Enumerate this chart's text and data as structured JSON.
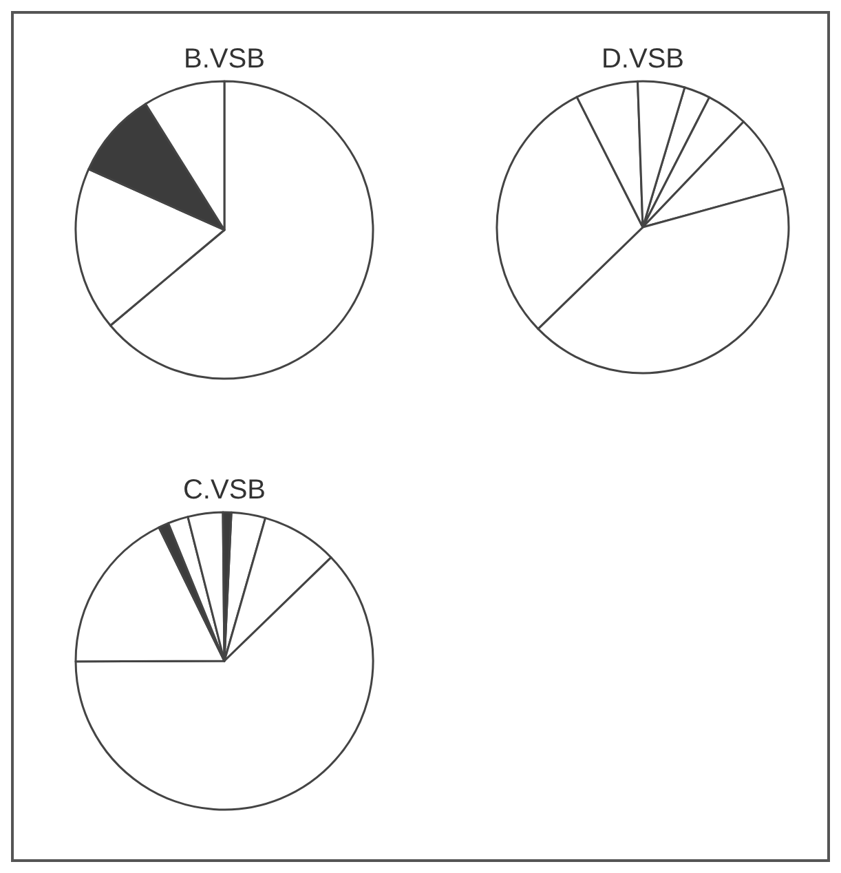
{
  "chart_data": [
    {
      "type": "pie",
      "title": "B.VSB",
      "categories": [
        null,
        null,
        null,
        null
      ],
      "values": [
        63.9,
        17.8,
        9.4,
        8.9
      ],
      "colors": [
        "#ffffff",
        "#ffffff",
        "#3c3c3c",
        "#ffffff"
      ]
    },
    {
      "type": "pie",
      "title": "D.VSB",
      "categories": [
        null,
        null,
        null,
        null,
        null,
        null,
        null
      ],
      "values": [
        2.9,
        4.6,
        8.6,
        42.0,
        29.8,
        6.9,
        5.2
      ],
      "colors": [
        "#ffffff",
        "#ffffff",
        "#ffffff",
        "#ffffff",
        "#ffffff",
        "#ffffff",
        "#ffffff"
      ]
    },
    {
      "type": "pie",
      "title": "C.VSB",
      "categories": [
        null,
        null,
        null,
        null,
        null,
        null,
        null,
        null
      ],
      "values": [
        3.7,
        8.3,
        62.2,
        17.8,
        1.1,
        2.2,
        3.8,
        0.9
      ],
      "colors": [
        "#ffffff",
        "#ffffff",
        "#ffffff",
        "#ffffff",
        "#3c3c3c",
        "#ffffff",
        "#ffffff",
        "#3c3c3c"
      ]
    }
  ]
}
